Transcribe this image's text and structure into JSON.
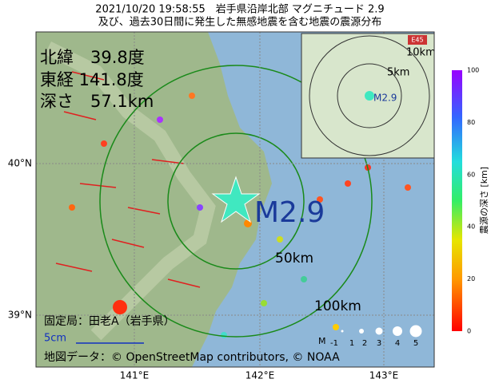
{
  "title": {
    "line1": "2021/10/20 19:58:55　岩手県沿岸北部 マグニチュード 2.9",
    "line2": "及び、過去30日間に発生した無感地震を含む地震の震源分布"
  },
  "info": {
    "lat": "北緯　39.8度",
    "lon": "東経 141.8度",
    "depth": "深さ　57.1km"
  },
  "magnitude_label": "M2.9",
  "rings": [
    "50km",
    "100km"
  ],
  "axes": {
    "lat": [
      "40°N",
      "39°N"
    ],
    "lon": [
      "141°E",
      "142°E",
      "143°E"
    ]
  },
  "station": "固定局：田老A（岩手県）",
  "scale": "5cm",
  "credit": "地図データ：© OpenStreetMap contributors, © NOAA",
  "inset": {
    "rings": [
      "10km",
      "5km"
    ],
    "magnitude_label": "M2.9",
    "road": "E45"
  },
  "legend": {
    "title": "M",
    "sizes": [
      "-1",
      "1",
      "2",
      "3",
      "4",
      "5"
    ]
  },
  "colorbar": {
    "label": "震源の深さ [km]",
    "ticks": [
      "0",
      "20",
      "40",
      "60",
      "80",
      "100"
    ]
  }
}
